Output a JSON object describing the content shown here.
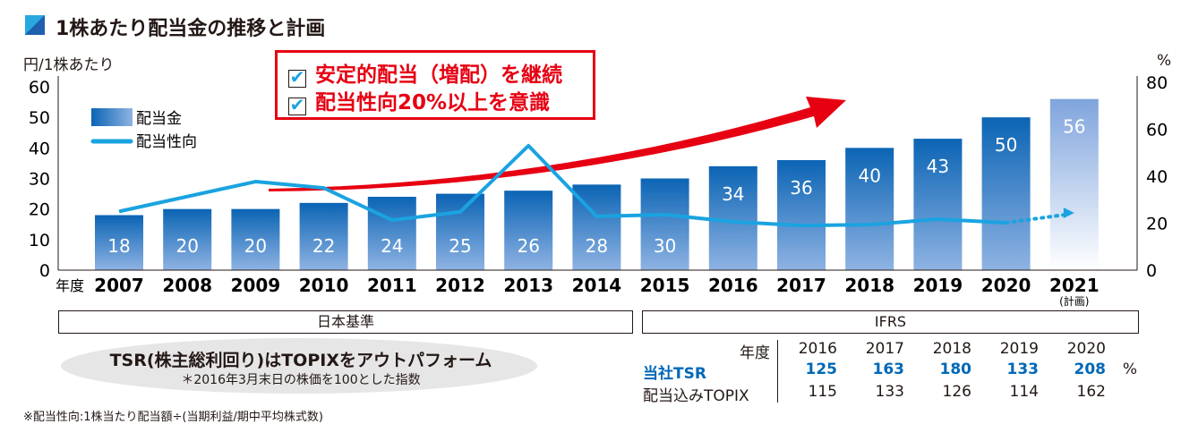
{
  "title": "1株あたり配当金の推移と計画",
  "callout": {
    "line1": "安定的配当（増配）を継続",
    "line2": "配当性向20%以上を意識",
    "check": "✔"
  },
  "chart_data": {
    "type": "bar+line",
    "title": "1株あたり配当金の推移と計画",
    "ylabel_left": "円/1株あたり",
    "ylabel_right": "%",
    "xlabel": "年度",
    "ylim_left": [
      0,
      60
    ],
    "ylim_right": [
      0,
      80
    ],
    "yticks_left": [
      "0",
      "10",
      "20",
      "30",
      "40",
      "50",
      "60"
    ],
    "yticks_right": [
      "0",
      "20",
      "40",
      "60",
      "80"
    ],
    "categories": [
      "2007",
      "2008",
      "2009",
      "2010",
      "2011",
      "2012",
      "2013",
      "2014",
      "2015",
      "2016",
      "2017",
      "2018",
      "2019",
      "2020",
      "2021"
    ],
    "category_note": "(計画)",
    "series": [
      {
        "name": "配当金",
        "type": "bar",
        "axis": "left",
        "values": [
          18,
          20,
          20,
          22,
          24,
          25,
          26,
          28,
          30,
          34,
          36,
          40,
          43,
          50,
          56
        ],
        "labels": [
          "18",
          "20",
          "20",
          "22",
          "24",
          "25",
          "26",
          "28",
          "30",
          "34",
          "36",
          "40",
          "43",
          "50",
          "56"
        ],
        "planned_last": true
      },
      {
        "name": "配当性向",
        "type": "line",
        "axis": "right",
        "values": [
          25,
          null,
          37.7,
          35,
          21.3,
          24.8,
          53,
          22.9,
          23.6,
          20.6,
          19,
          19.4,
          21.7,
          20.2,
          24.4
        ],
        "dotted_last": true
      }
    ],
    "legend": [
      "配当金",
      "配当性向"
    ],
    "legend_position": "top-left"
  },
  "basis": {
    "japan": "日本基準",
    "ifrs": "IFRS"
  },
  "tsr": {
    "headline": "TSR(株主総利回り)はTOPIXをアウトパフォーム",
    "note": "＊2016年3月末日の株価を100とした指数"
  },
  "table": {
    "header_label": "年度",
    "years": [
      "2016",
      "2017",
      "2018",
      "2019",
      "2020"
    ],
    "rows": [
      {
        "label": "当社TSR",
        "values": [
          "125",
          "163",
          "180",
          "133",
          "208"
        ],
        "unit": "%"
      },
      {
        "label": "配当込みTOPIX",
        "values": [
          "115",
          "133",
          "126",
          "114",
          "162"
        ]
      }
    ]
  },
  "footnote": "※配当性向:1株当たり配当額÷(当期利益/期中平均株式数)",
  "colors": {
    "bar_top": "#0b64b4",
    "bar_bottom": "#8fb3e3",
    "line": "#1aa3e0",
    "red": "#e60012",
    "tsr": "#0068b7"
  }
}
